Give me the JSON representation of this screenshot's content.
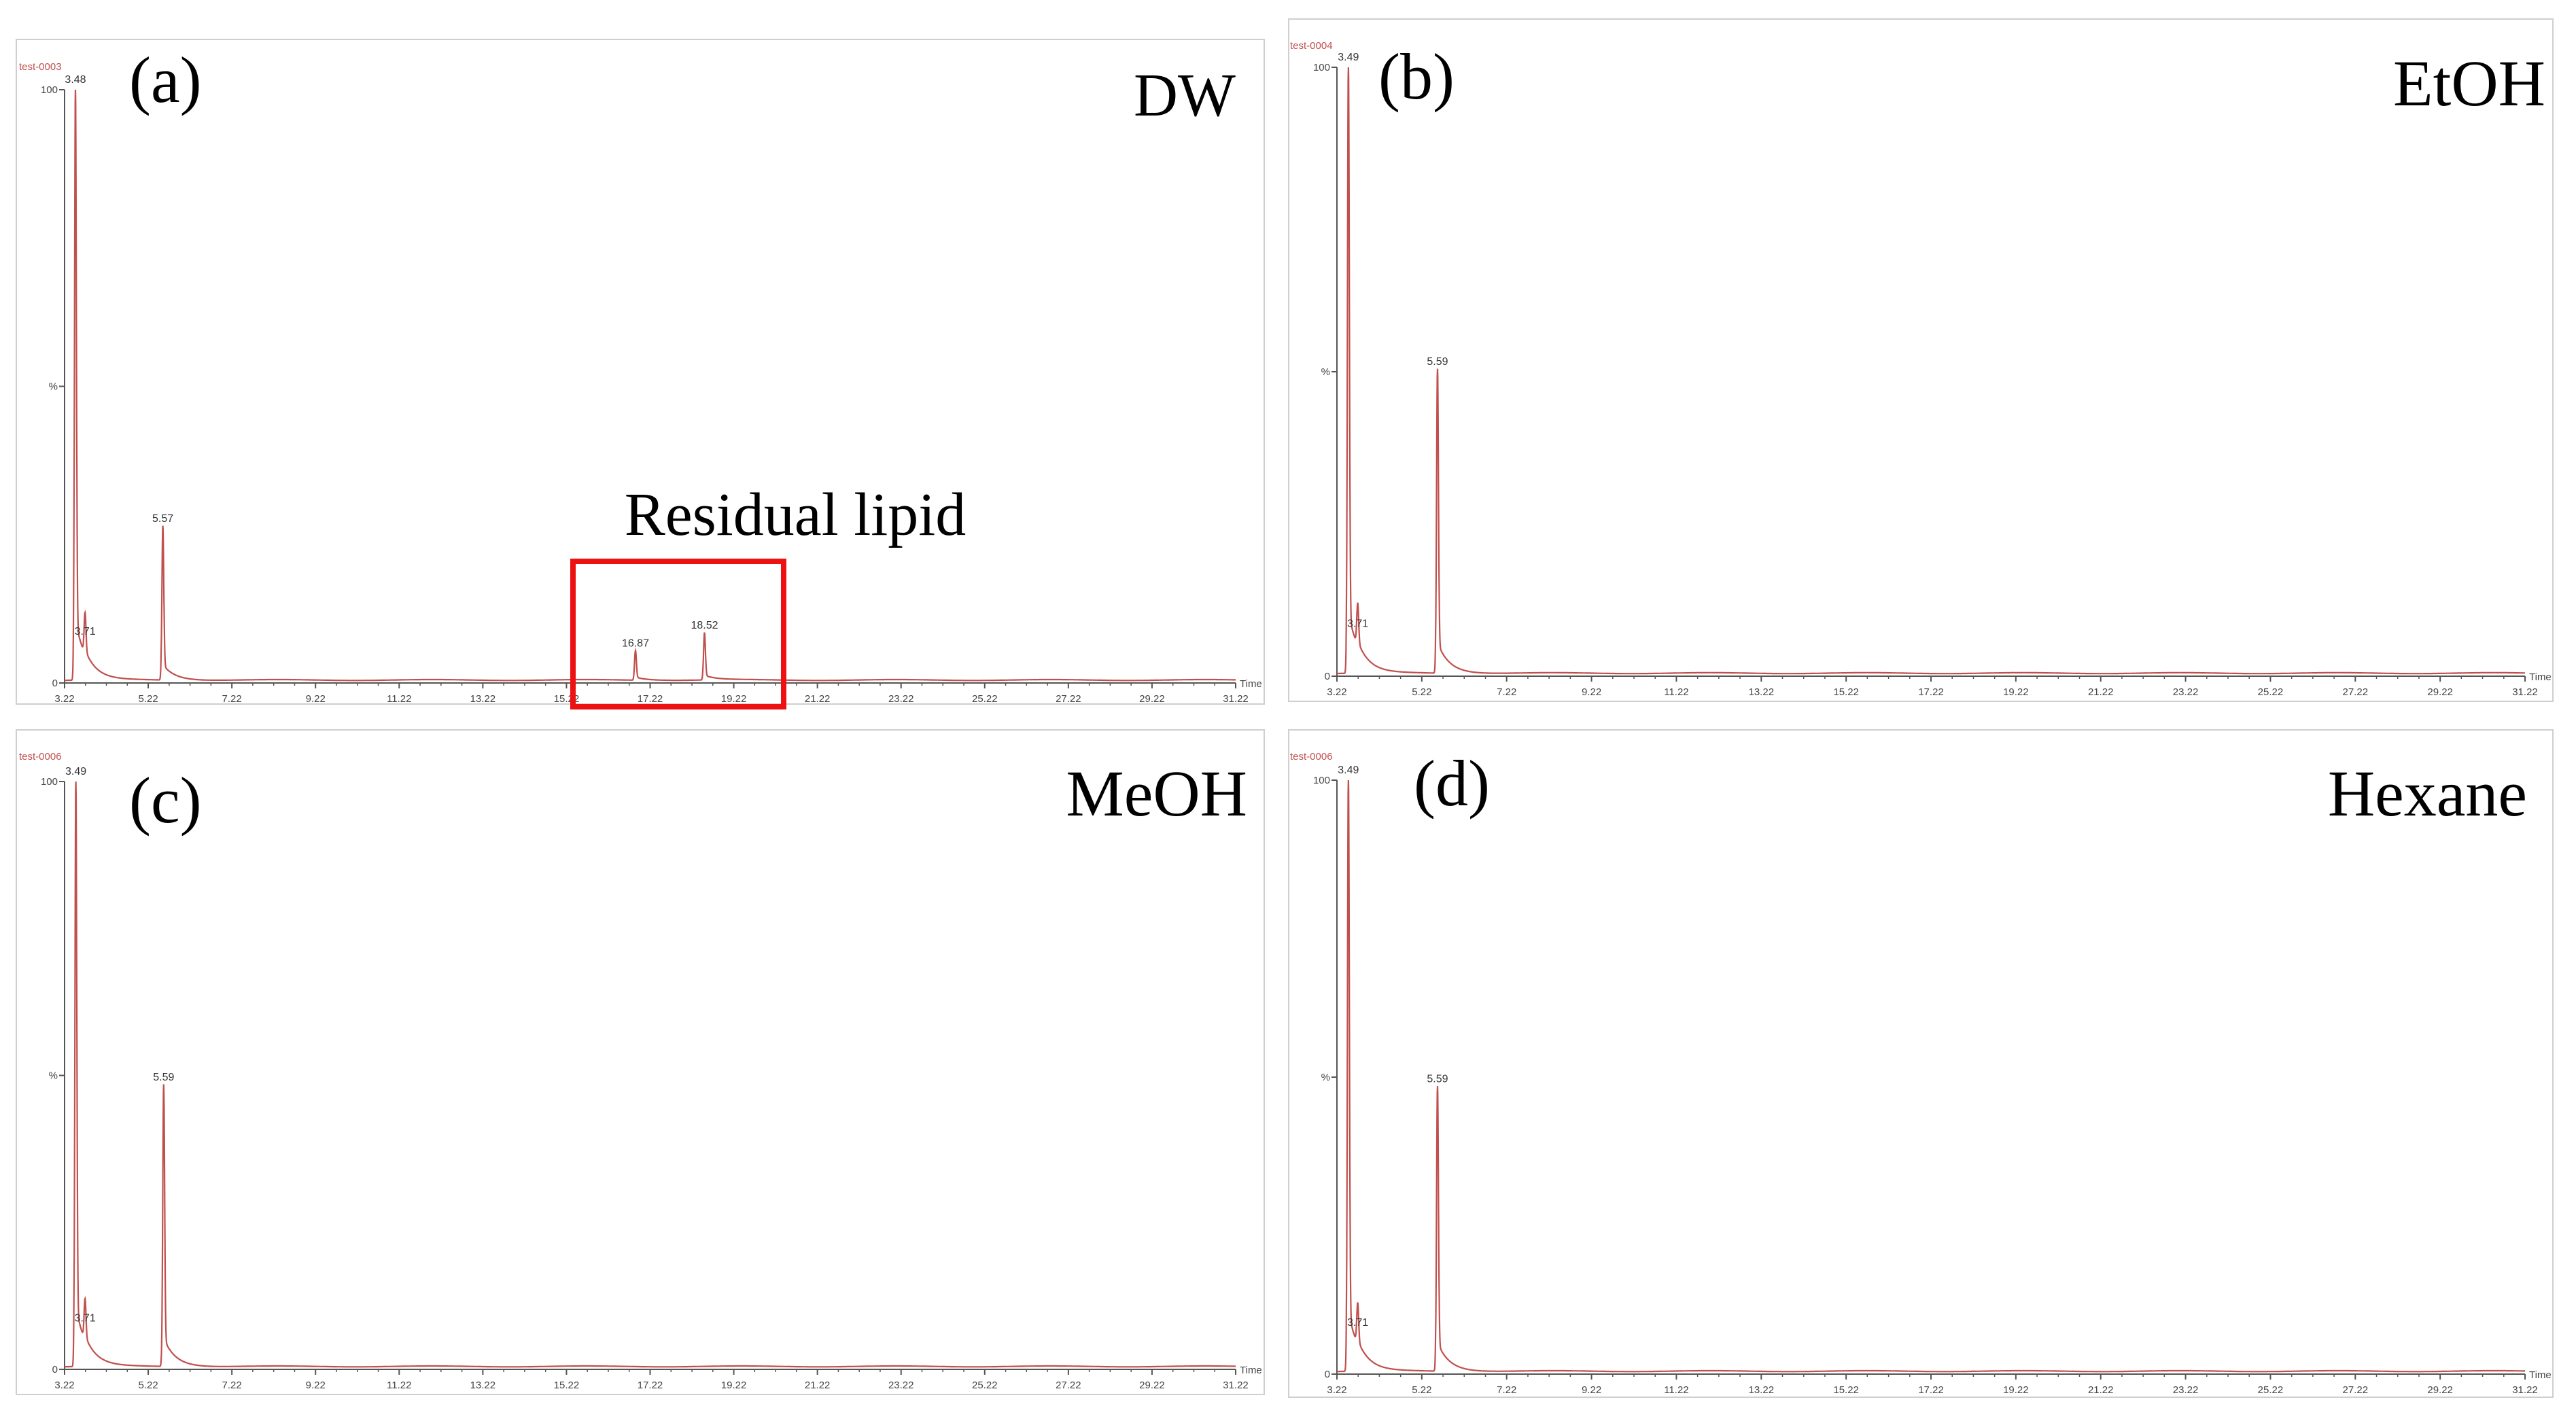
{
  "figure": {
    "panels": [
      {
        "id": "a",
        "letter": "(a)",
        "solvent": "DW",
        "file": "test-0003"
      },
      {
        "id": "b",
        "letter": "(b)",
        "solvent": "EtOH",
        "file": "test-0004"
      },
      {
        "id": "c",
        "letter": "(c)",
        "solvent": "MeOH",
        "file": "test-0006"
      },
      {
        "id": "d",
        "letter": "(d)",
        "solvent": "Hexane",
        "file": "test-0006"
      }
    ],
    "annotation": "Residual lipid",
    "colors": {
      "trace": "#c0504d",
      "frame": "#cfcfcf",
      "box": "#ee1111",
      "axis": "#555555"
    }
  },
  "chart_data": [
    {
      "type": "line",
      "panel": "(a)",
      "title": "DW",
      "xlabel": "Time",
      "xlim": [
        3.22,
        31.22
      ],
      "ylim": [
        0,
        100
      ],
      "y_ticks": [
        "0",
        "%",
        "100"
      ],
      "x_ticks": [
        "3.22",
        "5.22",
        "7.22",
        "9.22",
        "11.22",
        "13.22",
        "15.22",
        "17.22",
        "19.22",
        "21.22",
        "23.22",
        "25.22",
        "27.22",
        "29.22",
        "31.22"
      ],
      "peaks": [
        {
          "x": 3.48,
          "y": 100,
          "label": "3.48"
        },
        {
          "x": 3.71,
          "y": 7,
          "label": "3.71"
        },
        {
          "x": 5.57,
          "y": 26,
          "label": "5.57"
        },
        {
          "x": 16.87,
          "y": 5,
          "label": "16.87"
        },
        {
          "x": 18.52,
          "y": 8,
          "label": "18.52"
        }
      ]
    },
    {
      "type": "line",
      "panel": "(b)",
      "title": "EtOH",
      "xlabel": "Time",
      "xlim": [
        3.22,
        31.22
      ],
      "ylim": [
        0,
        100
      ],
      "y_ticks": [
        "0",
        "%",
        "100"
      ],
      "x_ticks": [
        "3.22",
        "5.22",
        "7.22",
        "9.22",
        "11.22",
        "13.22",
        "15.22",
        "17.22",
        "19.22",
        "21.22",
        "23.22",
        "25.22",
        "27.22",
        "29.22",
        "31.22"
      ],
      "peaks": [
        {
          "x": 3.49,
          "y": 100,
          "label": "3.49"
        },
        {
          "x": 3.71,
          "y": 7,
          "label": "3.71"
        },
        {
          "x": 5.59,
          "y": 50,
          "label": "5.59"
        }
      ]
    },
    {
      "type": "line",
      "panel": "(c)",
      "title": "MeOH",
      "xlabel": "Time",
      "xlim": [
        3.22,
        31.22
      ],
      "ylim": [
        0,
        100
      ],
      "y_ticks": [
        "0",
        "%",
        "100"
      ],
      "x_ticks": [
        "3.22",
        "5.22",
        "7.22",
        "9.22",
        "11.22",
        "13.22",
        "15.22",
        "17.22",
        "19.22",
        "21.22",
        "23.22",
        "25.22",
        "27.22",
        "29.22",
        "31.22"
      ],
      "peaks": [
        {
          "x": 3.49,
          "y": 100,
          "label": "3.49"
        },
        {
          "x": 3.71,
          "y": 7,
          "label": "3.71"
        },
        {
          "x": 5.59,
          "y": 48,
          "label": "5.59"
        }
      ]
    },
    {
      "type": "line",
      "panel": "(d)",
      "title": "Hexane",
      "xlabel": "Time",
      "xlim": [
        3.22,
        31.22
      ],
      "ylim": [
        0,
        100
      ],
      "y_ticks": [
        "0",
        "%",
        "100"
      ],
      "x_ticks": [
        "3.22",
        "5.22",
        "7.22",
        "9.22",
        "11.22",
        "13.22",
        "15.22",
        "17.22",
        "19.22",
        "21.22",
        "23.22",
        "25.22",
        "27.22",
        "29.22",
        "31.22"
      ],
      "peaks": [
        {
          "x": 3.49,
          "y": 100,
          "label": "3.49"
        },
        {
          "x": 3.71,
          "y": 7,
          "label": "3.71"
        },
        {
          "x": 5.59,
          "y": 48,
          "label": "5.59"
        }
      ]
    }
  ]
}
